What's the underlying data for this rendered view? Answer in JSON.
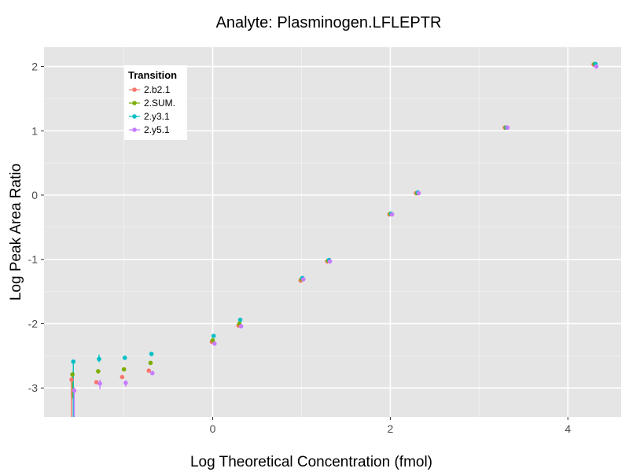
{
  "chart_data": {
    "type": "scatter",
    "title": "Analyte: Plasminogen.LFLEPTR",
    "xlabel": "Log Theoretical Concentration (fmol)",
    "ylabel": "Log Peak Area Ratio",
    "xlim": [
      -1.9,
      4.6
    ],
    "ylim": [
      -3.45,
      2.3
    ],
    "xticks": [
      0,
      2,
      4
    ],
    "xtick_labels": [
      "0",
      "2",
      "4"
    ],
    "yticks": [
      2,
      1,
      0,
      -1,
      -2,
      -3
    ],
    "ytick_labels": [
      "2",
      "1",
      "0",
      "-1",
      "-2",
      "-3"
    ],
    "grid": true,
    "legend": {
      "title": "Transition",
      "placement": "top-left"
    },
    "series": [
      {
        "name": "2.b2.1",
        "color": "#F8766D",
        "points": [
          {
            "x": -1.59,
            "y": -2.87
          },
          {
            "x": -1.31,
            "y": -2.91
          },
          {
            "x": -1.02,
            "y": -2.83
          },
          {
            "x": -0.72,
            "y": -2.73
          },
          {
            "x": -0.01,
            "y": -2.28
          },
          {
            "x": 0.29,
            "y": -2.03
          },
          {
            "x": 0.99,
            "y": -1.33
          },
          {
            "x": 1.29,
            "y": -1.03
          },
          {
            "x": 1.99,
            "y": -0.3
          },
          {
            "x": 2.29,
            "y": 0.03
          },
          {
            "x": 3.29,
            "y": 1.05
          },
          {
            "x": 4.29,
            "y": 2.03
          }
        ]
      },
      {
        "name": "2.SUM.",
        "color": "#7CAE00",
        "points": [
          {
            "x": -1.58,
            "y": -2.79
          },
          {
            "x": -1.29,
            "y": -2.74
          },
          {
            "x": -1.0,
            "y": -2.71
          },
          {
            "x": -0.7,
            "y": -2.61
          },
          {
            "x": 0.0,
            "y": -2.26
          },
          {
            "x": 0.3,
            "y": -2.0
          },
          {
            "x": 1.0,
            "y": -1.31
          },
          {
            "x": 1.3,
            "y": -1.02
          },
          {
            "x": 2.0,
            "y": -0.29
          },
          {
            "x": 2.3,
            "y": 0.03
          },
          {
            "x": 3.3,
            "y": 1.05
          },
          {
            "x": 4.3,
            "y": 2.04
          }
        ]
      },
      {
        "name": "2.y3.1",
        "color": "#00BFC4",
        "points": [
          {
            "x": -1.57,
            "y": -2.59
          },
          {
            "x": -1.28,
            "y": -2.55
          },
          {
            "x": -0.99,
            "y": -2.53
          },
          {
            "x": -0.69,
            "y": -2.47
          },
          {
            "x": 0.01,
            "y": -2.19
          },
          {
            "x": 0.31,
            "y": -1.94
          },
          {
            "x": 1.01,
            "y": -1.29
          },
          {
            "x": 1.31,
            "y": -1.01
          },
          {
            "x": 2.01,
            "y": -0.29
          },
          {
            "x": 2.31,
            "y": 0.04
          },
          {
            "x": 3.31,
            "y": 1.05
          },
          {
            "x": 4.31,
            "y": 2.04
          }
        ]
      },
      {
        "name": "2.y5.1",
        "color": "#C77CFF",
        "points": [
          {
            "x": -1.56,
            "y": -3.04
          },
          {
            "x": -1.27,
            "y": -2.93
          },
          {
            "x": -0.98,
            "y": -2.92
          },
          {
            "x": -0.68,
            "y": -2.77
          },
          {
            "x": 0.02,
            "y": -2.31
          },
          {
            "x": 0.32,
            "y": -2.04
          },
          {
            "x": 1.02,
            "y": -1.31
          },
          {
            "x": 1.32,
            "y": -1.03
          },
          {
            "x": 2.02,
            "y": -0.3
          },
          {
            "x": 2.32,
            "y": 0.03
          },
          {
            "x": 3.32,
            "y": 1.05
          },
          {
            "x": 4.32,
            "y": 2.0
          }
        ]
      }
    ],
    "error_bars": [
      {
        "series": "2.b2.1",
        "x": -1.59,
        "low": -3.45,
        "high": -2.84
      },
      {
        "series": "2.SUM.",
        "x": -1.58,
        "low": -3.16,
        "high": -2.75
      },
      {
        "series": "2.y3.1",
        "x": -1.57,
        "low": -3.45,
        "high": -2.57
      },
      {
        "series": "2.y5.1",
        "x": -1.56,
        "low": -3.45,
        "high": -2.99
      },
      {
        "series": "2.y3.1",
        "x": -1.28,
        "low": -2.6,
        "high": -2.48
      },
      {
        "series": "2.y5.1",
        "x": -1.27,
        "low": -3.02,
        "high": -2.87
      },
      {
        "series": "2.y5.1",
        "x": -0.98,
        "low": -2.98,
        "high": -2.88
      },
      {
        "series": "2.y5.1",
        "x": -0.68,
        "low": -2.8,
        "high": -2.73
      }
    ]
  }
}
